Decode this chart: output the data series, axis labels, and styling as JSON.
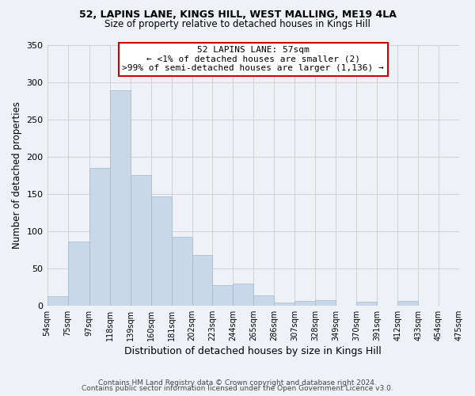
{
  "title": "52, LAPINS LANE, KINGS HILL, WEST MALLING, ME19 4LA",
  "subtitle": "Size of property relative to detached houses in Kings Hill",
  "xlabel": "Distribution of detached houses by size in Kings Hill",
  "ylabel": "Number of detached properties",
  "bar_color": "#c8d8e8",
  "bar_edge_color": "#a0b8cc",
  "annotation_line1": "52 LAPINS LANE: 57sqm",
  "annotation_line2": "← <1% of detached houses are smaller (2)",
  "annotation_line3": ">99% of semi-detached houses are larger (1,136) →",
  "annotation_box_color": "#ffffff",
  "annotation_box_edge_color": "#cc0000",
  "footer_line1": "Contains HM Land Registry data © Crown copyright and database right 2024.",
  "footer_line2": "Contains public sector information licensed under the Open Government Licence v3.0.",
  "bin_edges": [
    54,
    75,
    97,
    118,
    139,
    160,
    181,
    202,
    223,
    244,
    265,
    286,
    307,
    328,
    349,
    370,
    391,
    412,
    433,
    454,
    475
  ],
  "bin_heights": [
    13,
    86,
    185,
    289,
    175,
    147,
    92,
    68,
    27,
    30,
    14,
    4,
    6,
    7,
    0,
    5,
    0,
    6,
    0,
    0
  ],
  "ylim": [
    0,
    350
  ],
  "yticks": [
    0,
    50,
    100,
    150,
    200,
    250,
    300,
    350
  ],
  "bg_color": "#eef2f7"
}
